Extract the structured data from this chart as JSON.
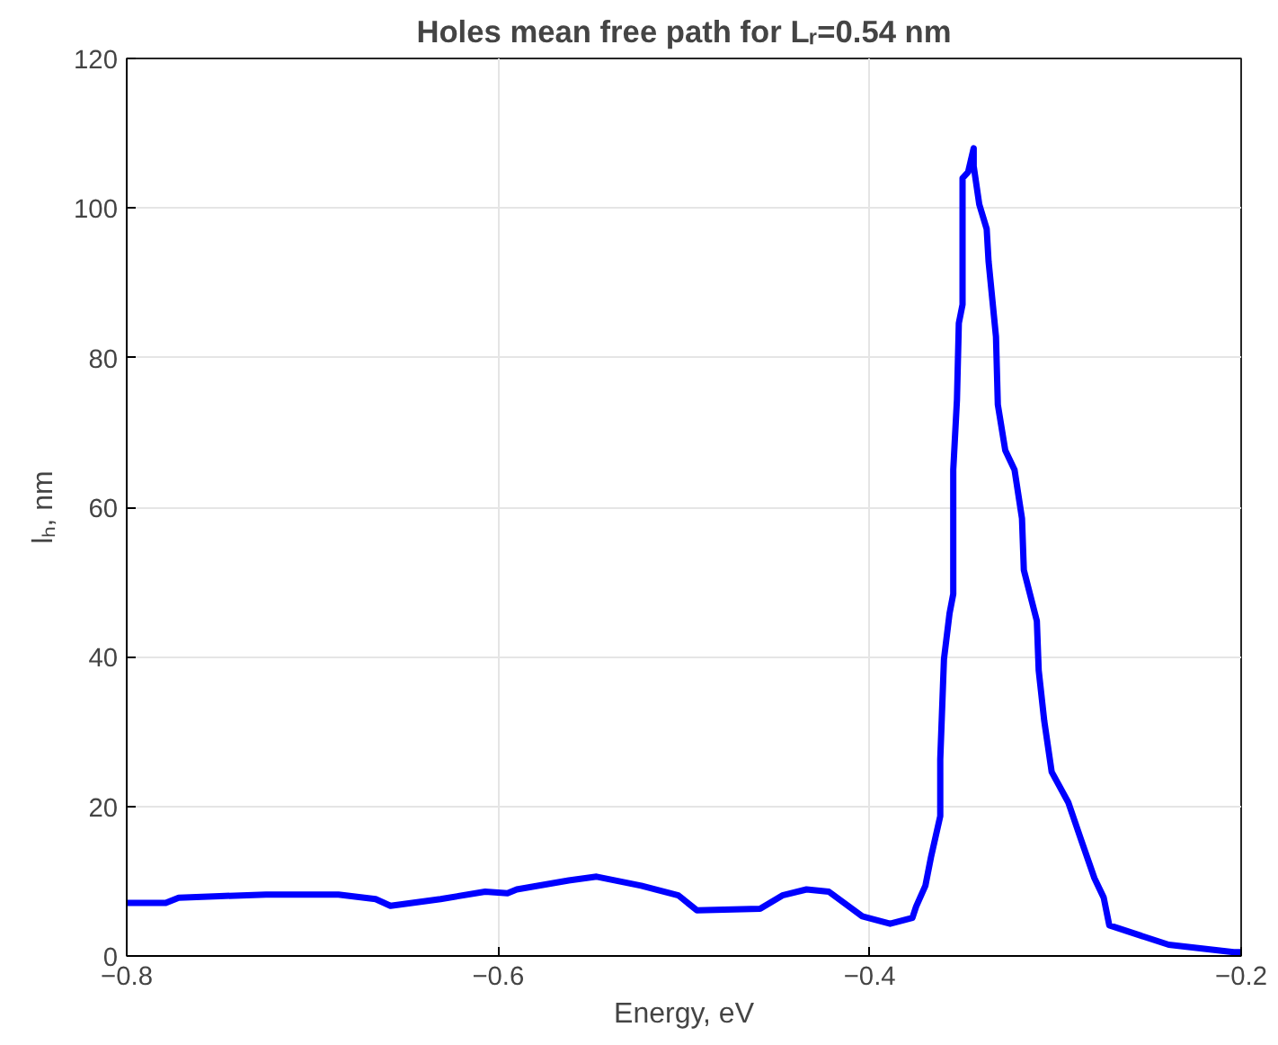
{
  "chart_data": {
    "type": "line",
    "title": "Holes mean free path for Lᵣ=0.54 nm",
    "xlabel": "Energy, eV",
    "ylabel": "lₕ, nm",
    "x": [
      -0.8,
      -0.779,
      -0.772,
      -0.75,
      -0.725,
      -0.686,
      -0.666,
      -0.658,
      -0.631,
      -0.607,
      -0.595,
      -0.59,
      -0.562,
      -0.547,
      -0.523,
      -0.503,
      -0.493,
      -0.459,
      -0.447,
      -0.434,
      -0.422,
      -0.404,
      -0.389,
      -0.377,
      -0.375,
      -0.37,
      -0.367,
      -0.362,
      -0.362,
      -0.36,
      -0.357,
      -0.355,
      -0.355,
      -0.353,
      -0.352,
      -0.35,
      -0.35,
      -0.347,
      -0.344,
      -0.344,
      -0.341,
      -0.337,
      -0.336,
      -0.332,
      -0.331,
      -0.327,
      -0.322,
      -0.318,
      -0.317,
      -0.31,
      -0.309,
      -0.306,
      -0.302,
      -0.293,
      -0.286,
      -0.279,
      -0.274,
      -0.271,
      -0.239,
      -0.204,
      -0.2
    ],
    "series": [
      {
        "color": "#0000ff",
        "values": [
          7.1,
          7.1,
          7.8,
          8.0,
          8.2,
          8.2,
          7.6,
          6.7,
          7.6,
          8.6,
          8.4,
          8.9,
          10.1,
          10.6,
          9.4,
          8.1,
          6.1,
          6.3,
          8.1,
          8.9,
          8.6,
          5.3,
          4.3,
          5.1,
          6.6,
          9.4,
          13.2,
          18.7,
          26.3,
          39.7,
          45.8,
          48.4,
          65,
          74.4,
          84.6,
          87.1,
          104,
          104.8,
          108,
          105.6,
          100.5,
          97.2,
          92.9,
          82.8,
          73.7,
          67.6,
          65,
          58.5,
          51.6,
          44.8,
          38.2,
          31.4,
          24.6,
          20.5,
          15.4,
          10.4,
          7.8,
          4.1,
          1.5,
          0.5,
          0.5
        ]
      }
    ],
    "xlim": [
      -0.8,
      -0.2
    ],
    "xticks": [
      -0.8,
      -0.6,
      -0.4,
      -0.2
    ],
    "ylim": [
      0,
      120
    ],
    "yticks": [
      0,
      20,
      40,
      60,
      80,
      100,
      120
    ],
    "grid": true,
    "line_style": "solid",
    "marker": "none"
  }
}
